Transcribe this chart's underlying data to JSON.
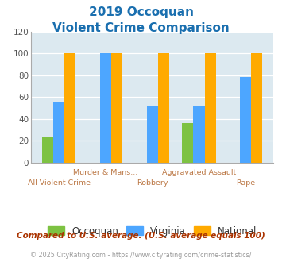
{
  "title_line1": "2019 Occoquan",
  "title_line2": "Violent Crime Comparison",
  "categories": [
    "All Violent Crime",
    "Murder & Mans...",
    "Robbery",
    "Aggravated Assault",
    "Rape"
  ],
  "occoquan": [
    24,
    0,
    0,
    36,
    0
  ],
  "virginia": [
    55,
    100,
    51,
    52,
    78
  ],
  "national": [
    100,
    100,
    100,
    100,
    100
  ],
  "color_occoquan": "#7dc242",
  "color_virginia": "#4da6ff",
  "color_national": "#ffaa00",
  "ylim": [
    0,
    120
  ],
  "yticks": [
    0,
    20,
    40,
    60,
    80,
    100,
    120
  ],
  "title_color": "#1a6faf",
  "xlabel_color": "#bb7744",
  "background_color": "#dce9f0",
  "legend_labels": [
    "Occoquan",
    "Virginia",
    "National"
  ],
  "footnote1": "Compared to U.S. average. (U.S. average equals 100)",
  "footnote2": "© 2025 CityRating.com - https://www.cityrating.com/crime-statistics/",
  "footnote1_color": "#aa3300",
  "footnote2_color": "#999999",
  "top_row_labels": [
    "",
    "Murder & Mans...",
    "",
    "Aggravated Assault",
    ""
  ],
  "bot_row_labels": [
    "All Violent Crime",
    "",
    "Robbery",
    "",
    "Rape"
  ]
}
